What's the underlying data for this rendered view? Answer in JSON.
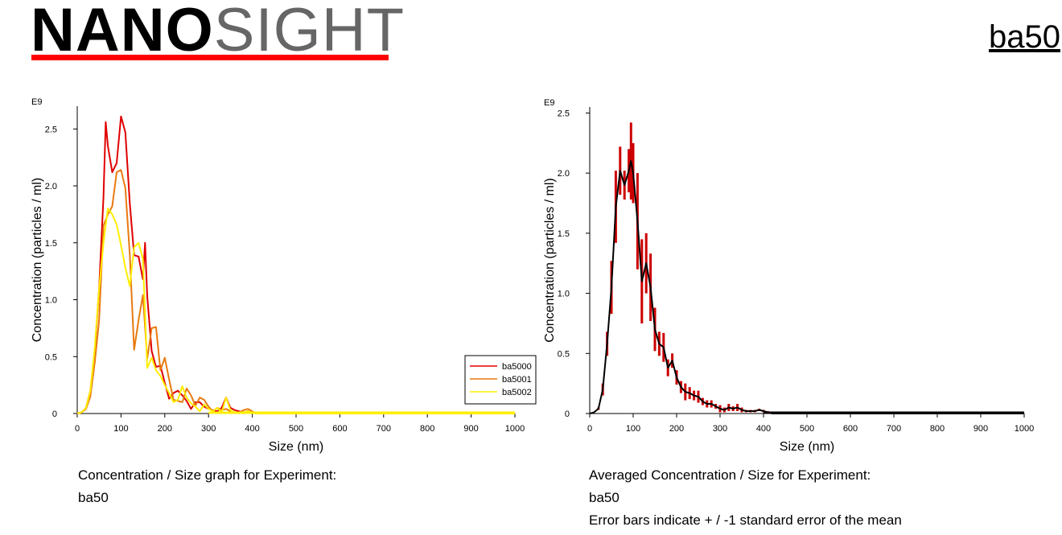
{
  "header": {
    "logo_part1": "NANO",
    "logo_part2": "SIGHT",
    "logo_accent_color": "#ff0000",
    "experiment_id": "ba50"
  },
  "captions": {
    "left": {
      "line1": "Concentration / Size graph for Experiment:",
      "line2": "ba50"
    },
    "right": {
      "line1": "Averaged Concentration / Size for Experiment:",
      "line2": "ba50",
      "line3": "Error bars indicate + / -1 standard error of the mean"
    }
  },
  "chart_data": [
    {
      "type": "line",
      "title": "",
      "xlabel": "Size (nm)",
      "ylabel": "Concentration (particles / ml)",
      "y_multiplier_label": "E9",
      "xlim": [
        0,
        1000
      ],
      "ylim": [
        0,
        2.7
      ],
      "x_ticks": [
        0,
        100,
        200,
        300,
        400,
        500,
        600,
        700,
        800,
        900,
        1000
      ],
      "y_ticks": [
        0,
        0.5,
        1.0,
        1.5,
        2.0,
        2.5
      ],
      "y_tick_labels": [
        "0",
        "0.5",
        "1.0",
        "1.5",
        "2.0",
        "2.5"
      ],
      "grid": false,
      "legend_position": "bottom-right",
      "series": [
        {
          "name": "ba5000",
          "color": "#e00000",
          "x": [
            0,
            10,
            20,
            30,
            40,
            50,
            60,
            65,
            70,
            80,
            90,
            100,
            110,
            120,
            130,
            140,
            150,
            155,
            160,
            170,
            180,
            190,
            200,
            210,
            220,
            230,
            240,
            250,
            260,
            270,
            280,
            290,
            300,
            310,
            320,
            330,
            340,
            350,
            360,
            370,
            380,
            390,
            400,
            410,
            420,
            500,
            1000
          ],
          "y": [
            0,
            0.01,
            0.05,
            0.2,
            0.55,
            1.1,
            1.9,
            2.56,
            2.35,
            2.12,
            2.2,
            2.61,
            2.47,
            1.85,
            1.39,
            1.38,
            1.18,
            1.5,
            1.03,
            0.55,
            0.41,
            0.42,
            0.27,
            0.13,
            0.18,
            0.2,
            0.16,
            0.11,
            0.04,
            0.1,
            0.1,
            0.06,
            0.04,
            0.03,
            0.02,
            0.05,
            0.14,
            0.05,
            0.03,
            0.02,
            0.01,
            0.02,
            0.01,
            0,
            0,
            0,
            0
          ]
        },
        {
          "name": "ba5001",
          "color": "#e87a10",
          "x": [
            0,
            10,
            20,
            30,
            40,
            50,
            60,
            70,
            80,
            90,
            100,
            110,
            120,
            130,
            140,
            150,
            160,
            170,
            180,
            190,
            200,
            210,
            220,
            230,
            240,
            250,
            260,
            270,
            280,
            290,
            300,
            310,
            320,
            330,
            340,
            350,
            360,
            370,
            380,
            390,
            400,
            410,
            420,
            500,
            1000
          ],
          "y": [
            0,
            0.01,
            0.04,
            0.15,
            0.45,
            0.82,
            1.65,
            1.75,
            1.82,
            2.12,
            2.14,
            1.98,
            1.4,
            0.56,
            0.82,
            1.04,
            0.48,
            0.75,
            0.76,
            0.38,
            0.49,
            0.3,
            0.12,
            0.11,
            0.1,
            0.22,
            0.16,
            0.07,
            0.14,
            0.12,
            0.06,
            0.02,
            0.05,
            0.03,
            0.04,
            0.02,
            0.01,
            0.01,
            0.03,
            0.04,
            0.02,
            0,
            0,
            0,
            0
          ]
        },
        {
          "name": "ba5002",
          "color": "#ffee00",
          "x": [
            0,
            10,
            20,
            30,
            40,
            50,
            60,
            70,
            80,
            90,
            100,
            110,
            120,
            130,
            140,
            150,
            160,
            170,
            180,
            190,
            200,
            210,
            220,
            230,
            240,
            250,
            260,
            270,
            280,
            290,
            300,
            310,
            320,
            330,
            340,
            350,
            360,
            370,
            380,
            390,
            400,
            410,
            420,
            500,
            1000
          ],
          "y": [
            0,
            0.01,
            0.05,
            0.2,
            0.58,
            1.1,
            1.5,
            1.8,
            1.75,
            1.66,
            1.48,
            1.28,
            1.12,
            1.46,
            1.5,
            1.36,
            0.4,
            0.49,
            0.38,
            0.33,
            0.25,
            0.18,
            0.1,
            0.12,
            0.24,
            0.14,
            0.09,
            0.06,
            0.02,
            0.08,
            0.04,
            0.02,
            0.05,
            0.01,
            0.14,
            0.03,
            0.01,
            0.01,
            0.01,
            0.02,
            0.01,
            0,
            0,
            0,
            0
          ]
        }
      ]
    },
    {
      "type": "line",
      "title": "",
      "xlabel": "Size (nm)",
      "ylabel": "Concentration (particles / ml)",
      "y_multiplier_label": "E9",
      "xlim": [
        0,
        1000
      ],
      "ylim": [
        0,
        2.55
      ],
      "x_ticks": [
        0,
        100,
        200,
        300,
        400,
        500,
        600,
        700,
        800,
        900,
        1000
      ],
      "y_ticks": [
        0,
        0.5,
        1.0,
        1.5,
        2.0,
        2.5
      ],
      "y_tick_labels": [
        "0",
        "0.5",
        "1.0",
        "1.5",
        "2.0",
        "2.5"
      ],
      "grid": false,
      "error_bars": "+/- 1 standard error of the mean",
      "series": [
        {
          "name": "",
          "color": "#000000",
          "error_color": "#cc0000",
          "x": [
            0,
            10,
            20,
            30,
            40,
            50,
            60,
            70,
            80,
            90,
            95,
            100,
            110,
            120,
            130,
            140,
            150,
            160,
            170,
            180,
            190,
            200,
            210,
            220,
            230,
            240,
            250,
            260,
            270,
            280,
            290,
            300,
            310,
            320,
            330,
            340,
            350,
            360,
            370,
            380,
            390,
            400,
            410,
            420,
            500,
            1000
          ],
          "y": [
            0,
            0.01,
            0.04,
            0.2,
            0.58,
            1.05,
            1.72,
            2.02,
            1.9,
            2.02,
            2.1,
            2.0,
            1.6,
            1.1,
            1.25,
            1.05,
            0.7,
            0.58,
            0.55,
            0.38,
            0.44,
            0.3,
            0.22,
            0.18,
            0.17,
            0.15,
            0.14,
            0.1,
            0.08,
            0.08,
            0.06,
            0.04,
            0.03,
            0.05,
            0.04,
            0.05,
            0.03,
            0.02,
            0.02,
            0.02,
            0.03,
            0.02,
            0.01,
            0,
            0,
            0
          ],
          "err": [
            0,
            0,
            0.01,
            0.05,
            0.1,
            0.22,
            0.3,
            0.2,
            0.12,
            0.18,
            0.32,
            0.25,
            0.4,
            0.35,
            0.25,
            0.28,
            0.18,
            0.1,
            0.12,
            0.07,
            0.06,
            0.06,
            0.05,
            0.07,
            0.05,
            0.04,
            0.05,
            0.03,
            0.03,
            0.03,
            0.02,
            0.03,
            0.02,
            0.03,
            0.02,
            0.03,
            0.02,
            0.01,
            0.01,
            0.01,
            0.01,
            0.01,
            0.01,
            0,
            0,
            0
          ]
        }
      ]
    }
  ]
}
